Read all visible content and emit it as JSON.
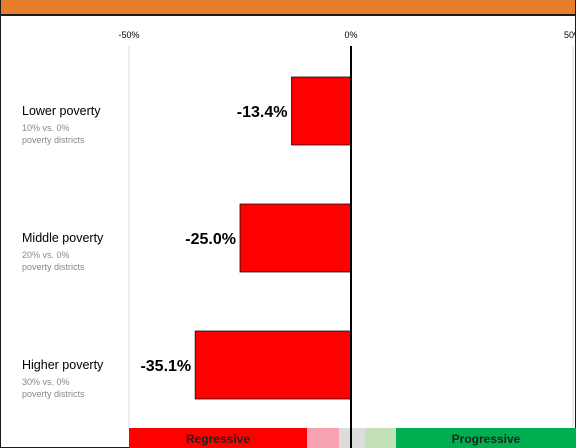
{
  "colors": {
    "top_bar": "#e87d2e",
    "bar": "#ff0000",
    "regressive": "#ff0000",
    "regressive_light": "#f7a3b4",
    "neutral": "#dcdcdc",
    "progressive_light": "#c4e0b7",
    "progressive": "#00b050",
    "gridline": "#d9d9d9",
    "zero_line": "#000000"
  },
  "chart_data": {
    "type": "bar",
    "orientation": "horizontal",
    "x_ticks": [
      "-50%",
      "0%",
      "50%"
    ],
    "xlim": [
      -50,
      50
    ],
    "categories": [
      {
        "label": "Lower poverty",
        "sublabel_1": "10% vs. 0%",
        "sublabel_2": "poverty districts"
      },
      {
        "label": "Middle poverty",
        "sublabel_1": "20% vs. 0%",
        "sublabel_2": "poverty districts"
      },
      {
        "label": "Higher poverty",
        "sublabel_1": "30% vs. 0%",
        "sublabel_2": "poverty districts"
      }
    ],
    "values": [
      -13.4,
      -25.0,
      -35.1
    ],
    "value_labels": [
      "-13.4%",
      "-25.0%",
      "-35.1%"
    ],
    "legend_scale": {
      "regressive_label": "Regressive",
      "progressive_label": "Progressive"
    }
  }
}
